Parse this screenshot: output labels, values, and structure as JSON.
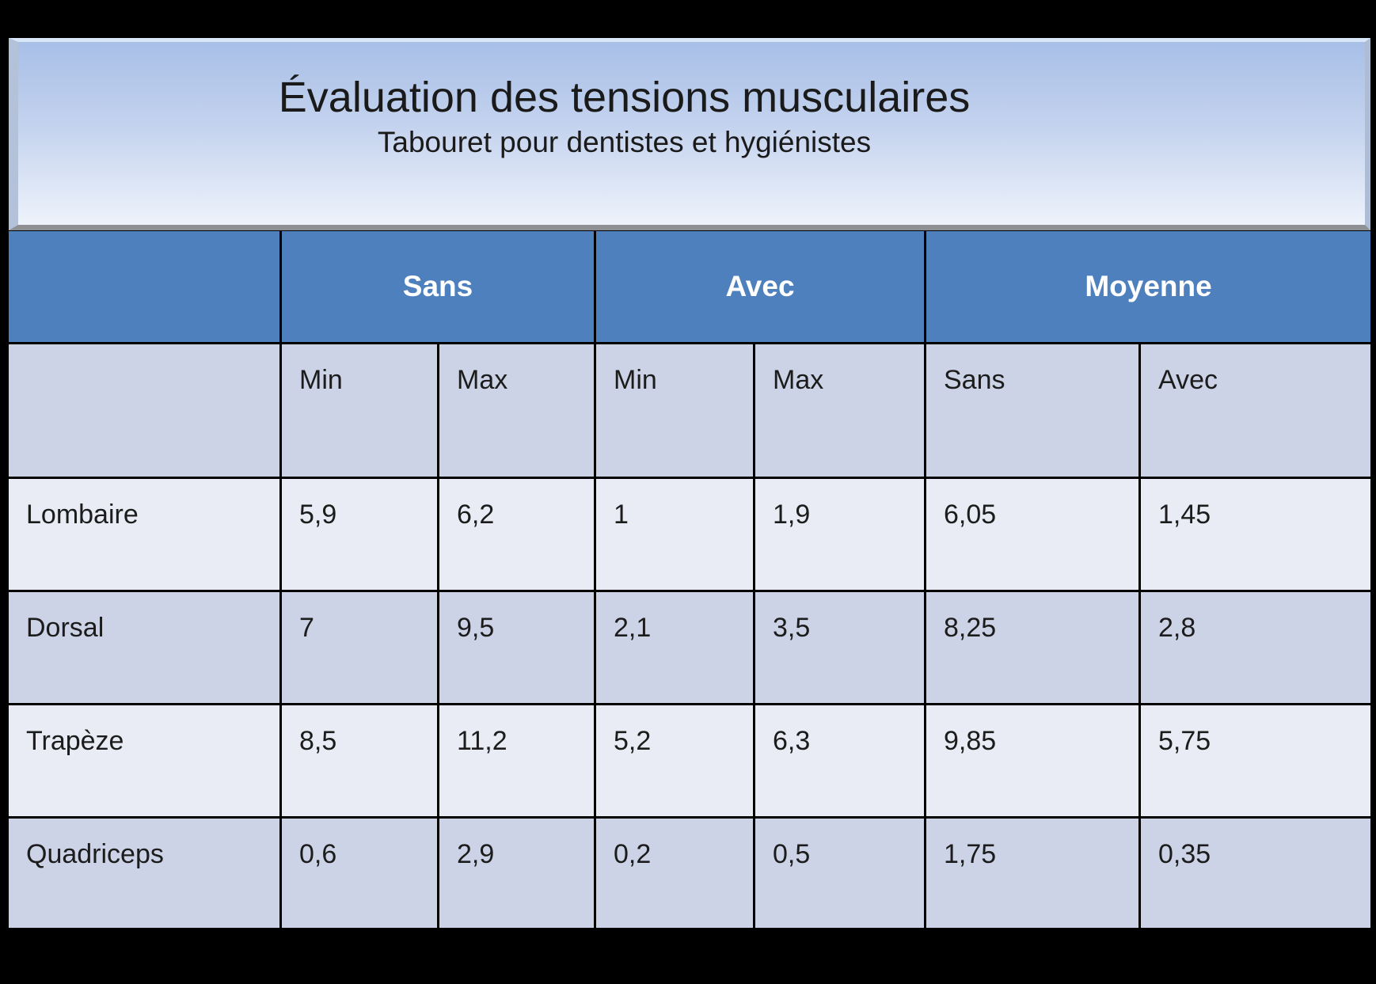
{
  "slide": {
    "title": "Évaluation des tensions musculaires",
    "subtitle": "Tabouret pour dentistes et hygiénistes"
  },
  "table": {
    "groups": [
      "Sans",
      "Avec",
      "Moyenne"
    ],
    "subheaders": [
      "Min",
      "Max",
      "Min",
      "Max",
      "Sans",
      "Avec"
    ],
    "rows": [
      {
        "label": "Lombaire",
        "values": [
          "5,9",
          "6,2",
          "1",
          "1,9",
          "6,05",
          "1,45"
        ]
      },
      {
        "label": "Dorsal",
        "values": [
          "7",
          "9,5",
          "2,1",
          "3,5",
          "8,25",
          "2,8"
        ]
      },
      {
        "label": "Trapèze",
        "values": [
          "8,5",
          "11,2",
          "5,2",
          "6,3",
          "9,85",
          "5,75"
        ]
      },
      {
        "label": "Quadriceps",
        "values": [
          "0,6",
          "2,9",
          "0,2",
          "0,5",
          "1,75",
          "0,35"
        ]
      }
    ]
  },
  "colors": {
    "header_bg": "#4e80bd",
    "header_text": "#ffffff",
    "row_light_bg": "#e9ecf4",
    "row_dark_bg": "#ccd3e6",
    "grid_lines": "#ffffff",
    "title_gradient_top": "#a8bfe7",
    "title_gradient_bottom": "#eef3fb",
    "page_background": "#000000",
    "body_text": "#1c1c1c"
  },
  "chart_data": {
    "type": "table",
    "title": "Évaluation des tensions musculaires",
    "subtitle": "Tabouret pour dentistes et hygiénistes",
    "column_groups": [
      "Sans",
      "Avec",
      "Moyenne"
    ],
    "columns": [
      "",
      "Sans Min",
      "Sans Max",
      "Avec Min",
      "Avec Max",
      "Moyenne Sans",
      "Moyenne Avec"
    ],
    "rows": [
      [
        "Lombaire",
        "5,9",
        "6,2",
        "1",
        "1,9",
        "6,05",
        "1,45"
      ],
      [
        "Dorsal",
        "7",
        "9,5",
        "2,1",
        "3,5",
        "8,25",
        "2,8"
      ],
      [
        "Trapèze",
        "8,5",
        "11,2",
        "5,2",
        "6,3",
        "9,85",
        "5,75"
      ],
      [
        "Quadriceps",
        "0,6",
        "2,9",
        "0,2",
        "0,5",
        "1,75",
        "0,35"
      ]
    ],
    "values_numeric": [
      [
        5.9,
        6.2,
        1.0,
        1.9,
        6.05,
        1.45
      ],
      [
        7.0,
        9.5,
        2.1,
        3.5,
        8.25,
        2.8
      ],
      [
        8.5,
        11.2,
        5.2,
        6.3,
        9.85,
        5.75
      ],
      [
        0.6,
        2.9,
        0.2,
        0.5,
        1.75,
        0.35
      ]
    ],
    "decimal_separator": ","
  }
}
